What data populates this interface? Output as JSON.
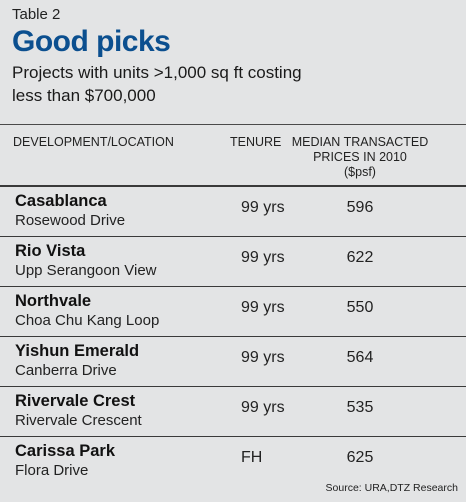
{
  "header": {
    "table_label": "Table 2",
    "title": "Good picks",
    "subtitle_line1": "Projects with units >1,000 sq ft costing",
    "subtitle_line2": "less than $700,000"
  },
  "columns": {
    "development": "DEVELOPMENT/LOCATION",
    "tenure": "TENURE",
    "price_line1": "MEDIAN TRANSACTED",
    "price_line2": "PRICES IN 2010",
    "price_line3": "($psf)"
  },
  "rows": [
    {
      "name": "Casablanca",
      "location": "Rosewood Drive",
      "tenure": "99 yrs",
      "price": "596"
    },
    {
      "name": "Rio Vista",
      "location": "Upp Serangoon View",
      "tenure": "99 yrs",
      "price": "622"
    },
    {
      "name": "Northvale",
      "location": "Choa Chu Kang Loop",
      "tenure": "99 yrs",
      "price": "550"
    },
    {
      "name": "Yishun Emerald",
      "location": "Canberra Drive",
      "tenure": "99 yrs",
      "price": "564"
    },
    {
      "name": "Rivervale Crest",
      "location": "Rivervale Crescent",
      "tenure": "99 yrs",
      "price": "535"
    },
    {
      "name": "Carissa Park",
      "location": "Flora Drive",
      "tenure": "FH",
      "price": "625"
    }
  ],
  "source": "Source: URA,DTZ Research",
  "colors": {
    "title": "#0b4f8f",
    "background": "#e3e4e5"
  }
}
